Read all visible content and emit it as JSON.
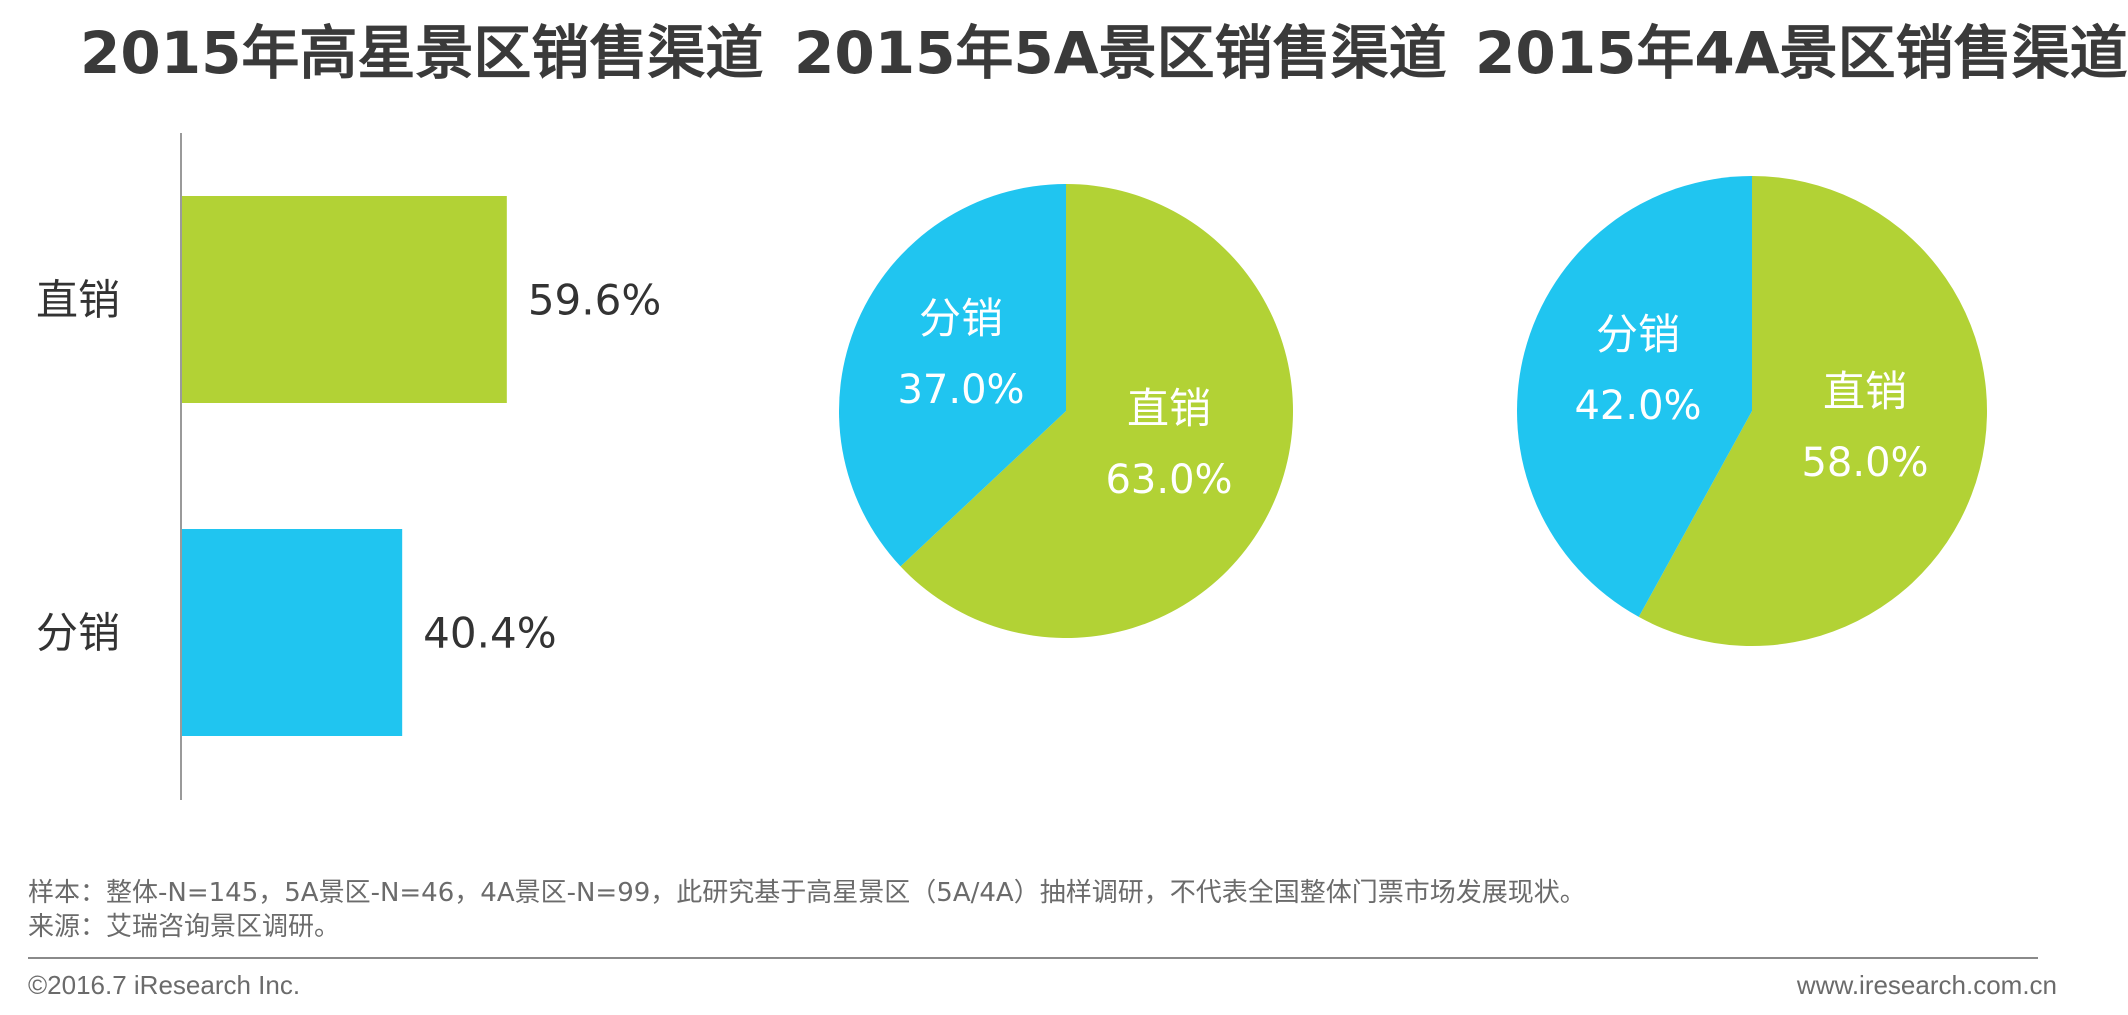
{
  "colors": {
    "direct": "#B2D235",
    "distribution": "#20C5F0",
    "axis": "#9a9a9a",
    "label_dark": "#333333",
    "label_light": "#ffffff"
  },
  "chart_data": [
    {
      "type": "bar",
      "orientation": "horizontal",
      "title": "2015年高星景区销售渠道",
      "categories": [
        "直销",
        "分销"
      ],
      "values": [
        59.6,
        40.4
      ],
      "value_labels": [
        "59.6%",
        "40.4%"
      ],
      "xlim": [
        0,
        100
      ],
      "xlabel": "",
      "ylabel": ""
    },
    {
      "type": "pie",
      "title": "2015年5A景区销售渠道",
      "labels": [
        "直销",
        "分销"
      ],
      "values": [
        63.0,
        37.0
      ],
      "value_labels": [
        "63.0%",
        "37.0%"
      ]
    },
    {
      "type": "pie",
      "title": "2015年4A景区销售渠道",
      "labels": [
        "直销",
        "分销"
      ],
      "values": [
        58.0,
        42.0
      ],
      "value_labels": [
        "58.0%",
        "42.0%"
      ]
    }
  ],
  "notes": {
    "sample": "样本：整体-N=145，5A景区-N=46，4A景区-N=99，此研究基于高星景区（5A/4A）抽样调研，不代表全国整体门票市场发展现状。",
    "source": "来源：艾瑞咨询景区调研。"
  },
  "footer": {
    "copyright": "©2016.7 iResearch Inc.",
    "website": "www.iresearch.com.cn"
  }
}
